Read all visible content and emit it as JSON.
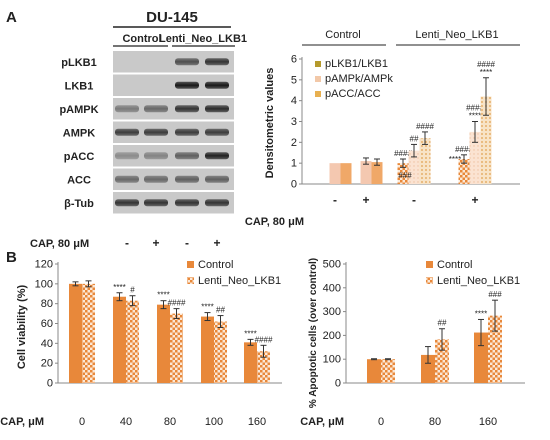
{
  "panels": {
    "a": "A",
    "b": "B"
  },
  "blot": {
    "cell_line": "DU-145",
    "groups": [
      "Control",
      "Lenti_Neo_LKB1"
    ],
    "rows": [
      "pLKB1",
      "LKB1",
      "pAMPK",
      "AMPK",
      "pACC",
      "ACC",
      "β-Tub"
    ],
    "treatment_label": "CAP, 80 μM",
    "lanes": [
      "-",
      "+",
      "-",
      "+"
    ]
  },
  "chart_data": [
    {
      "type": "bar",
      "group_labels": [
        "Control",
        "Lenti_Neo_LKB1"
      ],
      "categories": [
        "-",
        "+",
        "-",
        "+"
      ],
      "xlabel": "CAP, 80 μM",
      "ylabel": "Densitometric values",
      "ylim": [
        0,
        6
      ],
      "yticks": [
        0,
        1,
        2,
        3,
        4,
        5,
        6
      ],
      "legend_position": "top-left",
      "series": [
        {
          "name": "pLKB1/LKB1",
          "values": [
            null,
            null,
            1.0,
            1.2
          ],
          "errors": [
            0,
            0,
            0.2,
            0.2
          ],
          "annotations": [
            "",
            "",
            "####",
            "####"
          ]
        },
        {
          "name": "pAMPk/AMPk",
          "values": [
            1.0,
            1.1,
            1.6,
            2.5
          ],
          "errors": [
            0,
            0.15,
            0.3,
            0.5
          ],
          "annotations": [
            "",
            "",
            "##",
            "####\n****"
          ]
        },
        {
          "name": "pACC/ACC",
          "values": [
            1.0,
            1.05,
            2.2,
            4.2
          ],
          "errors": [
            0,
            0.15,
            0.3,
            0.9
          ],
          "annotations": [
            "",
            "",
            "####",
            "####\n****"
          ]
        }
      ],
      "extra_annotations": [
        "###",
        "****"
      ],
      "colors": {
        "pLKB1/LKB1": "#b59a2c",
        "pAMPk/AMPk": "#f2c8a8",
        "pACC/ACC": "#e8b050"
      }
    },
    {
      "type": "bar",
      "categories": [
        "0",
        "40",
        "80",
        "100",
        "160"
      ],
      "xlabel": "CAP, μM",
      "ylabel": "Cell viability (%)",
      "ylim": [
        0,
        120
      ],
      "yticks": [
        0,
        20,
        40,
        60,
        80,
        100,
        120
      ],
      "legend_position": "top-right",
      "series": [
        {
          "name": "Control",
          "values": [
            100,
            87,
            79,
            67,
            41
          ],
          "errors": [
            2,
            4,
            4,
            4,
            3
          ],
          "annotations": [
            "",
            "****",
            "****",
            "****",
            "****"
          ]
        },
        {
          "name": "Lenti_Neo_LKB1",
          "values": [
            100,
            83,
            70,
            62,
            32
          ],
          "errors": [
            3,
            5,
            5,
            6,
            6
          ],
          "annotations": [
            "",
            "#",
            "####",
            "##",
            "####"
          ]
        }
      ],
      "colors": {
        "Control": "#e8883a",
        "Lenti_Neo_LKB1": "#f7ddc4"
      }
    },
    {
      "type": "bar",
      "categories": [
        "0",
        "80",
        "160"
      ],
      "xlabel": "CAP, μM",
      "ylabel": "% Apoptotic cells (over control)",
      "ylim": [
        0,
        500
      ],
      "yticks": [
        0,
        100,
        200,
        300,
        400,
        500
      ],
      "legend_position": "top-right",
      "series": [
        {
          "name": "Control",
          "values": [
            100,
            118,
            212
          ],
          "errors": [
            2,
            35,
            55
          ],
          "annotations": [
            "",
            "",
            "****"
          ]
        },
        {
          "name": "Lenti_Neo_LKB1",
          "values": [
            100,
            183,
            283
          ],
          "errors": [
            2,
            45,
            65
          ],
          "annotations": [
            "",
            "##",
            "###"
          ]
        }
      ],
      "colors": {
        "Control": "#e8883a",
        "Lenti_Neo_LKB1": "#f7ddc4"
      }
    }
  ]
}
